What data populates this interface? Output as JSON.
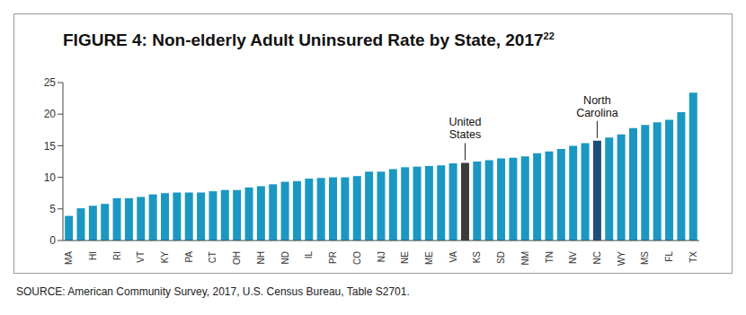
{
  "chart_data": {
    "type": "bar",
    "title": "FIGURE 4:  Non-elderly Adult Uninsured Rate by State, 2017",
    "title_footnote": "22",
    "source": "SOURCE: American Community Survey, 2017, U.S. Census Bureau, Table S2701.",
    "categories": [
      "MA",
      null,
      "HI",
      null,
      "RI",
      null,
      "VT",
      null,
      "KY",
      null,
      "PA",
      null,
      "CT",
      null,
      "OH",
      null,
      "NH",
      null,
      "ND",
      null,
      "IL",
      null,
      "PR",
      null,
      "CO",
      null,
      "NJ",
      null,
      "NE",
      null,
      "ME",
      null,
      "VA",
      null,
      "KS",
      null,
      "SD",
      null,
      "NM",
      null,
      "TN",
      null,
      "NV",
      null,
      "NC",
      null,
      "WY",
      null,
      "MS",
      null,
      "FL",
      null,
      "TX"
    ],
    "values": [
      3.9,
      5.1,
      5.5,
      5.8,
      6.7,
      6.7,
      6.9,
      7.3,
      7.5,
      7.6,
      7.6,
      7.6,
      7.8,
      8.0,
      8.0,
      8.4,
      8.6,
      8.9,
      9.3,
      9.4,
      9.8,
      9.9,
      10.0,
      10.0,
      10.2,
      10.9,
      10.9,
      11.3,
      11.6,
      11.7,
      11.8,
      11.9,
      12.2,
      12.3,
      12.5,
      12.7,
      13.0,
      13.1,
      13.3,
      13.8,
      14.1,
      14.5,
      15.0,
      15.4,
      15.8,
      16.3,
      16.8,
      17.8,
      18.3,
      18.7,
      19.1,
      20.3,
      23.4
    ],
    "colors": [
      "#1b98c2",
      "#1b98c2",
      "#1b98c2",
      "#1b98c2",
      "#1b98c2",
      "#1b98c2",
      "#1b98c2",
      "#1b98c2",
      "#1b98c2",
      "#1b98c2",
      "#1b98c2",
      "#1b98c2",
      "#1b98c2",
      "#1b98c2",
      "#1b98c2",
      "#1b98c2",
      "#1b98c2",
      "#1b98c2",
      "#1b98c2",
      "#1b98c2",
      "#1b98c2",
      "#1b98c2",
      "#1b98c2",
      "#1b98c2",
      "#1b98c2",
      "#1b98c2",
      "#1b98c2",
      "#1b98c2",
      "#1b98c2",
      "#1b98c2",
      "#1b98c2",
      "#1b98c2",
      "#1b98c2",
      "#3b3b3b",
      "#1b98c2",
      "#1b98c2",
      "#1b98c2",
      "#1b98c2",
      "#1b98c2",
      "#1b98c2",
      "#1b98c2",
      "#1b98c2",
      "#1b98c2",
      "#1b98c2",
      "#1f4e7a",
      "#1b98c2",
      "#1b98c2",
      "#1b98c2",
      "#1b98c2",
      "#1b98c2",
      "#1b98c2",
      "#1b98c2",
      "#1b98c2"
    ],
    "annotations": [
      {
        "text": "United States",
        "index": 33
      },
      {
        "text": "North Carolina",
        "index": 44
      }
    ],
    "ylim": [
      0,
      25
    ],
    "yticks": [
      0,
      5,
      10,
      15,
      20,
      25
    ],
    "grid": false
  }
}
